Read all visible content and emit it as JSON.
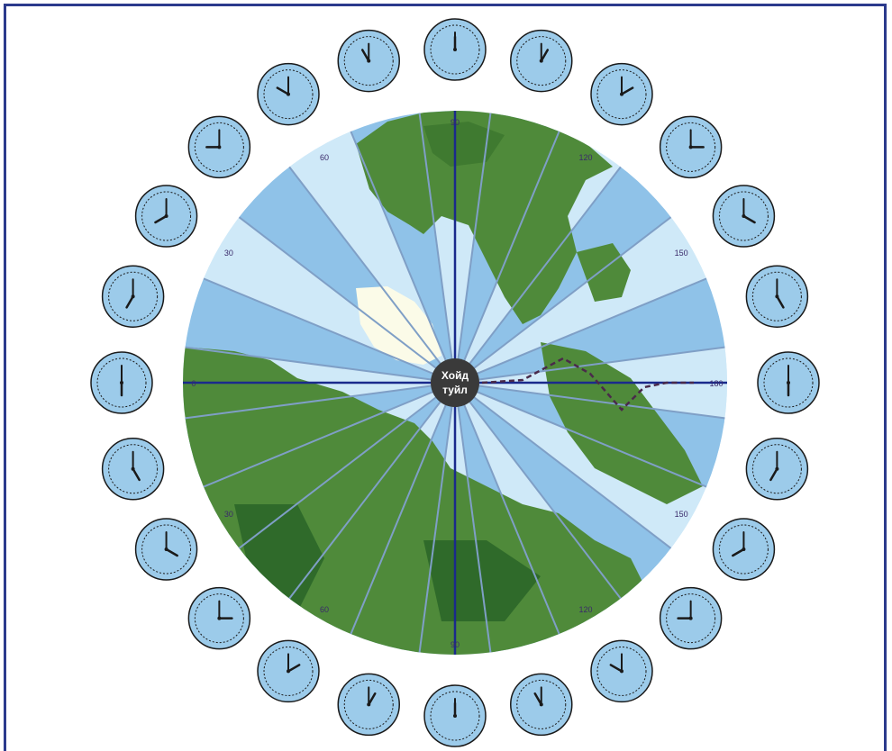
{
  "pole_label_line1": "Хойд",
  "pole_label_line2": "туйл",
  "longitude_labels": [
    "0",
    "30",
    "60",
    "90",
    "120",
    "150",
    "180",
    "150",
    "120",
    "90",
    "60",
    "30"
  ],
  "clock_hours": [
    12,
    1,
    2,
    3,
    4,
    5,
    6,
    7,
    8,
    9,
    10,
    11,
    12,
    1,
    2,
    3,
    4,
    5,
    6,
    7,
    8,
    9,
    10,
    11
  ],
  "colors": {
    "frame": "#2b3a8c",
    "sector_light": "#cfe9f8",
    "sector_dark": "#8fc2e8",
    "land": "#4f8a3a",
    "land_dark": "#2f6a2a",
    "ice": "#fbfbe8",
    "axis": "#1a2a8c",
    "clock_face": "#9ccbea",
    "pole": "#3a3a3a",
    "date_line": "#4a2a4a"
  }
}
